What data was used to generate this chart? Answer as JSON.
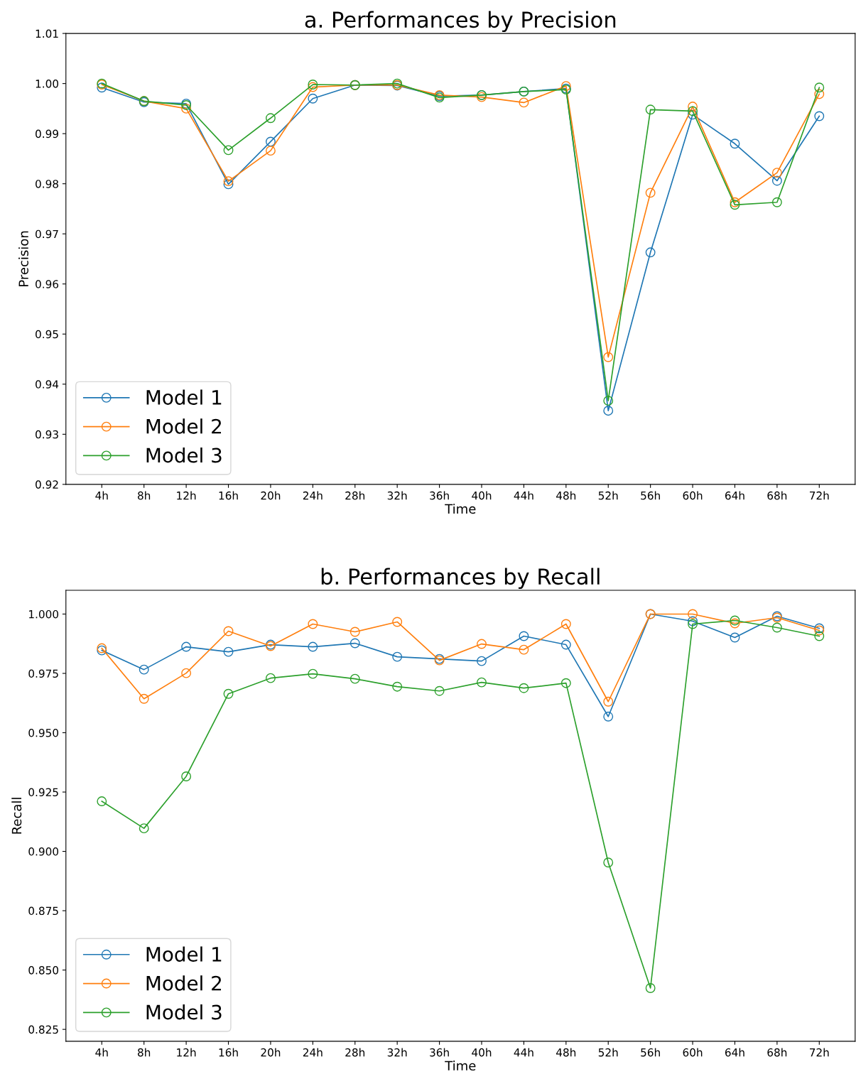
{
  "chart_data": [
    {
      "type": "line",
      "title": "a. Performances by Precision",
      "xlabel": "Time",
      "ylabel": "Precision",
      "categories": [
        "4h",
        "8h",
        "12h",
        "16h",
        "20h",
        "24h",
        "28h",
        "32h",
        "36h",
        "40h",
        "44h",
        "48h",
        "52h",
        "56h",
        "60h",
        "64h",
        "68h",
        "72h"
      ],
      "series": [
        {
          "name": "Model 1",
          "color": "#1f77b4",
          "values": [
            0.9992,
            0.9963,
            0.996,
            0.9799,
            0.9884,
            0.997,
            0.9997,
            0.9996,
            0.9975,
            0.9977,
            0.9984,
            0.999,
            0.9347,
            0.9663,
            0.9938,
            0.988,
            0.9806,
            0.9935
          ]
        },
        {
          "name": "Model 2",
          "color": "#ff7f0e",
          "values": [
            0.9998,
            0.9965,
            0.995,
            0.9805,
            0.9866,
            0.9993,
            0.9997,
            0.9997,
            0.9977,
            0.9973,
            0.9962,
            0.9995,
            0.9454,
            0.9782,
            0.9954,
            0.9763,
            0.9822,
            0.9979
          ]
        },
        {
          "name": "Model 3",
          "color": "#2ca02c",
          "values": [
            1.0,
            0.9965,
            0.9957,
            0.9867,
            0.9931,
            0.9998,
            0.9997,
            1.0,
            0.9972,
            0.9977,
            0.9984,
            0.9988,
            0.9367,
            0.9948,
            0.9945,
            0.9758,
            0.9763,
            0.9992
          ]
        }
      ],
      "ylim": [
        0.92,
        1.01
      ],
      "yticks": [
        {
          "value": 0.92,
          "label": "0.92"
        },
        {
          "value": 0.93,
          "label": "0.93"
        },
        {
          "value": 0.94,
          "label": "0.94"
        },
        {
          "value": 0.95,
          "label": "0.95"
        },
        {
          "value": 0.96,
          "label": "0.96"
        },
        {
          "value": 0.97,
          "label": "0.97"
        },
        {
          "value": 0.98,
          "label": "0.98"
        },
        {
          "value": 0.99,
          "label": "0.99"
        },
        {
          "value": 1.0,
          "label": "1.00"
        },
        {
          "value": 1.01,
          "label": "1.01"
        }
      ],
      "marker": "circle",
      "line_style": "solid",
      "grid": false,
      "legend": "bottom left"
    },
    {
      "type": "line",
      "title": "b. Performances by Recall",
      "xlabel": "Time",
      "ylabel": "Recall",
      "categories": [
        "4h",
        "8h",
        "12h",
        "16h",
        "20h",
        "24h",
        "28h",
        "32h",
        "36h",
        "40h",
        "44h",
        "48h",
        "52h",
        "56h",
        "60h",
        "64h",
        "68h",
        "72h"
      ],
      "series": [
        {
          "name": "Model 1",
          "color": "#1f77b4",
          "values": [
            0.9847,
            0.9766,
            0.9862,
            0.9841,
            0.9871,
            0.9862,
            0.9877,
            0.982,
            0.9811,
            0.9802,
            0.9907,
            0.9871,
            0.9568,
            1.0,
            0.997,
            0.9901,
            0.9991,
            0.994
          ]
        },
        {
          "name": "Model 2",
          "color": "#ff7f0e",
          "values": [
            0.9856,
            0.9643,
            0.9751,
            0.9928,
            0.9865,
            0.9958,
            0.9925,
            0.9967,
            0.9805,
            0.9874,
            0.985,
            0.9958,
            0.9631,
            1.0,
            1.0,
            0.9961,
            0.9985,
            0.9931
          ]
        },
        {
          "name": "Model 3",
          "color": "#2ca02c",
          "values": [
            0.9211,
            0.9097,
            0.9316,
            0.9664,
            0.973,
            0.9748,
            0.9727,
            0.9694,
            0.9676,
            0.9712,
            0.9688,
            0.9709,
            0.8953,
            0.8424,
            0.9958,
            0.9973,
            0.9943,
            0.9907
          ]
        }
      ],
      "ylim": [
        0.82,
        1.01
      ],
      "yticks": [
        {
          "value": 0.825,
          "label": "0.825"
        },
        {
          "value": 0.85,
          "label": "0.850"
        },
        {
          "value": 0.875,
          "label": "0.875"
        },
        {
          "value": 0.9,
          "label": "0.900"
        },
        {
          "value": 0.925,
          "label": "0.925"
        },
        {
          "value": 0.95,
          "label": "0.950"
        },
        {
          "value": 0.975,
          "label": "0.975"
        },
        {
          "value": 1.0,
          "label": "1.000"
        }
      ],
      "marker": "circle",
      "line_style": "solid",
      "grid": false,
      "legend": "bottom left"
    }
  ]
}
